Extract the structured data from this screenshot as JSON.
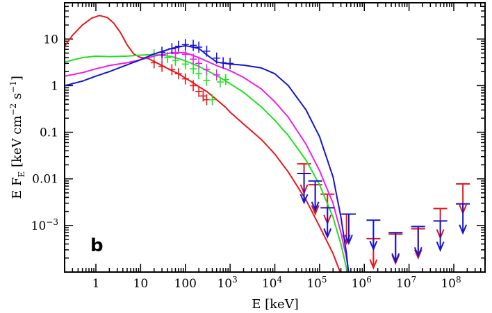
{
  "chart_data": {
    "type": "line",
    "title": "",
    "panel_label": "b",
    "xlabel": "E [keV]",
    "ylabel": "E F_E [keV cm^-2 s^-1]",
    "ylabel_parts": {
      "main": "E F",
      "sub": "E",
      "units_a": " [keV cm",
      "exp_a": "−2",
      "units_b": " s",
      "exp_b": "−1",
      "units_c": "]"
    },
    "x_scale": "log",
    "y_scale": "log",
    "xlim": [
      0.2,
      500000000
    ],
    "ylim": [
      0.0001,
      60
    ],
    "x_ticks": [
      {
        "value": 1,
        "label": "1"
      },
      {
        "value": 10,
        "label": "10"
      },
      {
        "value": 100,
        "label": "100"
      },
      {
        "value": 1000,
        "label": "10",
        "exp": "3"
      },
      {
        "value": 10000,
        "label": "10",
        "exp": "4"
      },
      {
        "value": 100000,
        "label": "10",
        "exp": "5"
      },
      {
        "value": 1000000,
        "label": "10",
        "exp": "6"
      },
      {
        "value": 10000000,
        "label": "10",
        "exp": "7"
      },
      {
        "value": 100000000,
        "label": "10",
        "exp": "8"
      }
    ],
    "y_ticks": [
      {
        "value": 0.001,
        "label": "10",
        "exp": "−3"
      },
      {
        "value": 0.01,
        "label": "0.01"
      },
      {
        "value": 0.1,
        "label": "0.1"
      },
      {
        "value": 1,
        "label": "1"
      },
      {
        "value": 10,
        "label": "10"
      }
    ],
    "colors": {
      "red": "#e8161a",
      "green": "#1fe21f",
      "magenta": "#ee1ee9",
      "blue": "#1414d2",
      "axis": "#000000"
    },
    "series": [
      {
        "name": "red",
        "color": "#e8161a",
        "model": {
          "x": [
            0.2,
            0.3,
            0.5,
            0.8,
            1.2,
            1.8,
            2.5,
            3.5,
            5,
            7,
            10,
            15,
            20,
            30,
            50,
            70,
            100,
            150,
            200,
            300,
            500,
            800,
            1000,
            2000,
            5000,
            10000,
            20000,
            50000,
            100000,
            200000,
            300000,
            500000
          ],
          "y": [
            7,
            12,
            20,
            28,
            32,
            29,
            22,
            14,
            7.5,
            4.8,
            4.0,
            3.8,
            3.3,
            2.7,
            2.1,
            1.8,
            1.45,
            1.15,
            0.95,
            0.75,
            0.5,
            0.34,
            0.27,
            0.15,
            0.07,
            0.034,
            0.014,
            0.0035,
            0.00095,
            0.00025,
            9e-05,
            1e-05
          ]
        },
        "data": {
          "x": [
            20,
            30,
            50,
            70,
            100,
            150,
            200,
            250,
            300
          ],
          "y": [
            3.1,
            2.6,
            2.2,
            1.8,
            1.4,
            1.0,
            0.75,
            0.6,
            0.5
          ]
        },
        "upper_limits": {
          "x": [
            45000,
            80000,
            150000,
            400000,
            1600000,
            5000000,
            16000000,
            50000000,
            160000000
          ],
          "y": [
            0.021,
            0.0075,
            0.0047,
            0.00175,
            0.00052,
            0.00065,
            0.00085,
            0.0023,
            0.0078
          ]
        }
      },
      {
        "name": "green",
        "color": "#1fe21f",
        "model": {
          "x": [
            0.2,
            0.5,
            1,
            2,
            5,
            7,
            10,
            20,
            50,
            100,
            200,
            500,
            1000,
            2000,
            5000,
            10000,
            20000,
            50000,
            100000,
            200000,
            300000,
            400000,
            500000,
            600000
          ],
          "y": [
            3.2,
            4.0,
            4.3,
            4.2,
            4.3,
            4.4,
            4.5,
            4.7,
            4.2,
            3.4,
            2.6,
            1.65,
            1.1,
            0.72,
            0.35,
            0.18,
            0.085,
            0.025,
            0.0075,
            0.0015,
            0.0004,
            0.00012,
            3e-05,
            1e-05
          ]
        },
        "data": {
          "x": [
            20,
            40,
            60,
            100,
            150,
            200,
            300,
            400,
            600,
            800
          ],
          "y": [
            4.6,
            4.0,
            3.5,
            2.9,
            2.3,
            1.8,
            1.3,
            0.5,
            1.2,
            1.35
          ]
        }
      },
      {
        "name": "magenta",
        "color": "#ee1ee9",
        "model": {
          "x": [
            0.2,
            0.5,
            1,
            2,
            5,
            10,
            20,
            50,
            100,
            200,
            500,
            1000,
            2000,
            5000,
            10000,
            20000,
            50000,
            100000,
            200000,
            300000,
            400000,
            500000,
            600000
          ],
          "y": [
            1.6,
            1.9,
            2.3,
            2.7,
            3.1,
            3.6,
            4.3,
            5.1,
            5.1,
            4.0,
            2.7,
            2.1,
            1.5,
            0.85,
            0.45,
            0.21,
            0.055,
            0.015,
            0.003,
            0.0007,
            0.0002,
            5e-05,
            1e-05
          ]
        },
        "data": {
          "x": [
            30,
            60,
            100,
            150,
            200,
            300,
            500
          ],
          "y": [
            4.5,
            4.9,
            4.7,
            3.7,
            3.0,
            2.2,
            1.7
          ]
        }
      },
      {
        "name": "blue",
        "color": "#1414d2",
        "model": {
          "x": [
            0.2,
            0.5,
            1,
            2,
            5,
            10,
            20,
            50,
            100,
            200,
            300,
            500,
            1000,
            2000,
            5000,
            10000,
            20000,
            50000,
            100000,
            200000,
            300000,
            400000,
            500000,
            600000
          ],
          "y": [
            1.0,
            1.25,
            1.6,
            2.0,
            2.8,
            3.6,
            4.8,
            6.3,
            7.2,
            6.3,
            4.6,
            3.2,
            2.9,
            2.75,
            2.4,
            1.8,
            1.0,
            0.3,
            0.08,
            0.011,
            0.0015,
            0.00025,
            3e-05,
            1e-05
          ]
        },
        "data": {
          "x": [
            30,
            50,
            70,
            100,
            150,
            200,
            300,
            500,
            700,
            1000
          ],
          "y": [
            5.2,
            6.2,
            7.0,
            7.6,
            7.3,
            6.7,
            5.5,
            3.9,
            3.1,
            3.0
          ]
        },
        "upper_limits": {
          "x": [
            45000,
            80000,
            150000,
            450000,
            1600000,
            5000000,
            16000000,
            50000000,
            160000000
          ],
          "y": [
            0.013,
            0.009,
            0.0024,
            0.00175,
            0.0013,
            0.0007,
            0.00095,
            0.00125,
            0.0029
          ]
        }
      }
    ]
  }
}
